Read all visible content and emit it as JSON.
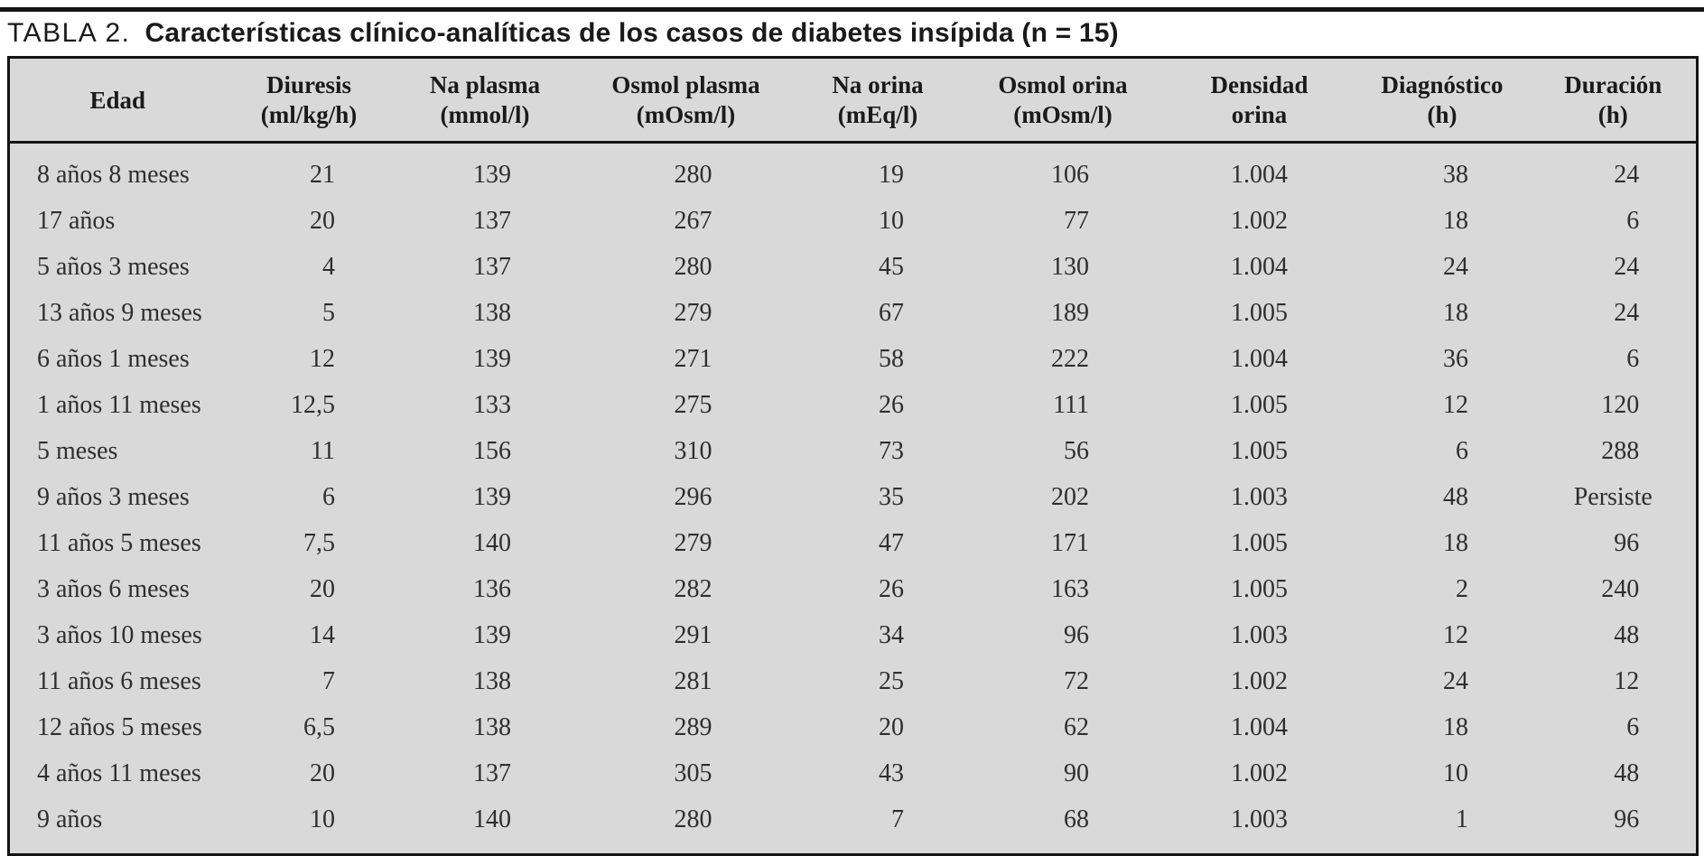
{
  "caption": {
    "label": "TABLA 2.",
    "title": "Características clínico-analíticas de los casos de diabetes insípida (n = 15)"
  },
  "colors": {
    "table_background": "#d9d9d9",
    "rule": "#141414",
    "body_text": "#2e2e2e",
    "header_text": "#1a1a1a"
  },
  "table": {
    "columns": [
      {
        "line1": "Edad",
        "line2": ""
      },
      {
        "line1": "Diuresis",
        "line2": "(ml/kg/h)"
      },
      {
        "line1": "Na plasma",
        "line2": "(mmol/l)"
      },
      {
        "line1": "Osmol plasma",
        "line2": "(mOsm/l)"
      },
      {
        "line1": "Na orina",
        "line2": "(mEq/l)"
      },
      {
        "line1": "Osmol orina",
        "line2": "(mOsm/l)"
      },
      {
        "line1": "Densidad",
        "line2": "orina"
      },
      {
        "line1": "Diagnóstico",
        "line2": "(h)"
      },
      {
        "line1": "Duración",
        "line2": "(h)"
      }
    ],
    "rows": [
      [
        "8 años 8 meses",
        "21",
        "139",
        "280",
        "19",
        "106",
        "1.004",
        "38",
        "24"
      ],
      [
        "17 años",
        "20",
        "137",
        "267",
        "10",
        "77",
        "1.002",
        "18",
        "6"
      ],
      [
        "5 años 3 meses",
        "4",
        "137",
        "280",
        "45",
        "130",
        "1.004",
        "24",
        "24"
      ],
      [
        "13 años 9 meses",
        "5",
        "138",
        "279",
        "67",
        "189",
        "1.005",
        "18",
        "24"
      ],
      [
        "6 años 1 meses",
        "12",
        "139",
        "271",
        "58",
        "222",
        "1.004",
        "36",
        "6"
      ],
      [
        "1 años 11 meses",
        "12,5",
        "133",
        "275",
        "26",
        "111",
        "1.005",
        "12",
        "120"
      ],
      [
        "5 meses",
        "11",
        "156",
        "310",
        "73",
        "56",
        "1.005",
        "6",
        "288"
      ],
      [
        "9 años 3 meses",
        "6",
        "139",
        "296",
        "35",
        "202",
        "1.003",
        "48",
        "Persiste"
      ],
      [
        "11 años 5 meses",
        "7,5",
        "140",
        "279",
        "47",
        "171",
        "1.005",
        "18",
        "96"
      ],
      [
        "3 años 6 meses",
        "20",
        "136",
        "282",
        "26",
        "163",
        "1.005",
        "2",
        "240"
      ],
      [
        "3 años 10 meses",
        "14",
        "139",
        "291",
        "34",
        "96",
        "1.003",
        "12",
        "48"
      ],
      [
        "11 años 6 meses",
        "7",
        "138",
        "281",
        "25",
        "72",
        "1.002",
        "24",
        "12"
      ],
      [
        "12 años 5 meses",
        "6,5",
        "138",
        "289",
        "20",
        "62",
        "1.004",
        "18",
        "6"
      ],
      [
        "4 años 11 meses",
        "20",
        "137",
        "305",
        "43",
        "90",
        "1.002",
        "10",
        "48"
      ],
      [
        "9 años",
        "10",
        "140",
        "280",
        "7",
        "68",
        "1.003",
        "1",
        "96"
      ]
    ]
  }
}
